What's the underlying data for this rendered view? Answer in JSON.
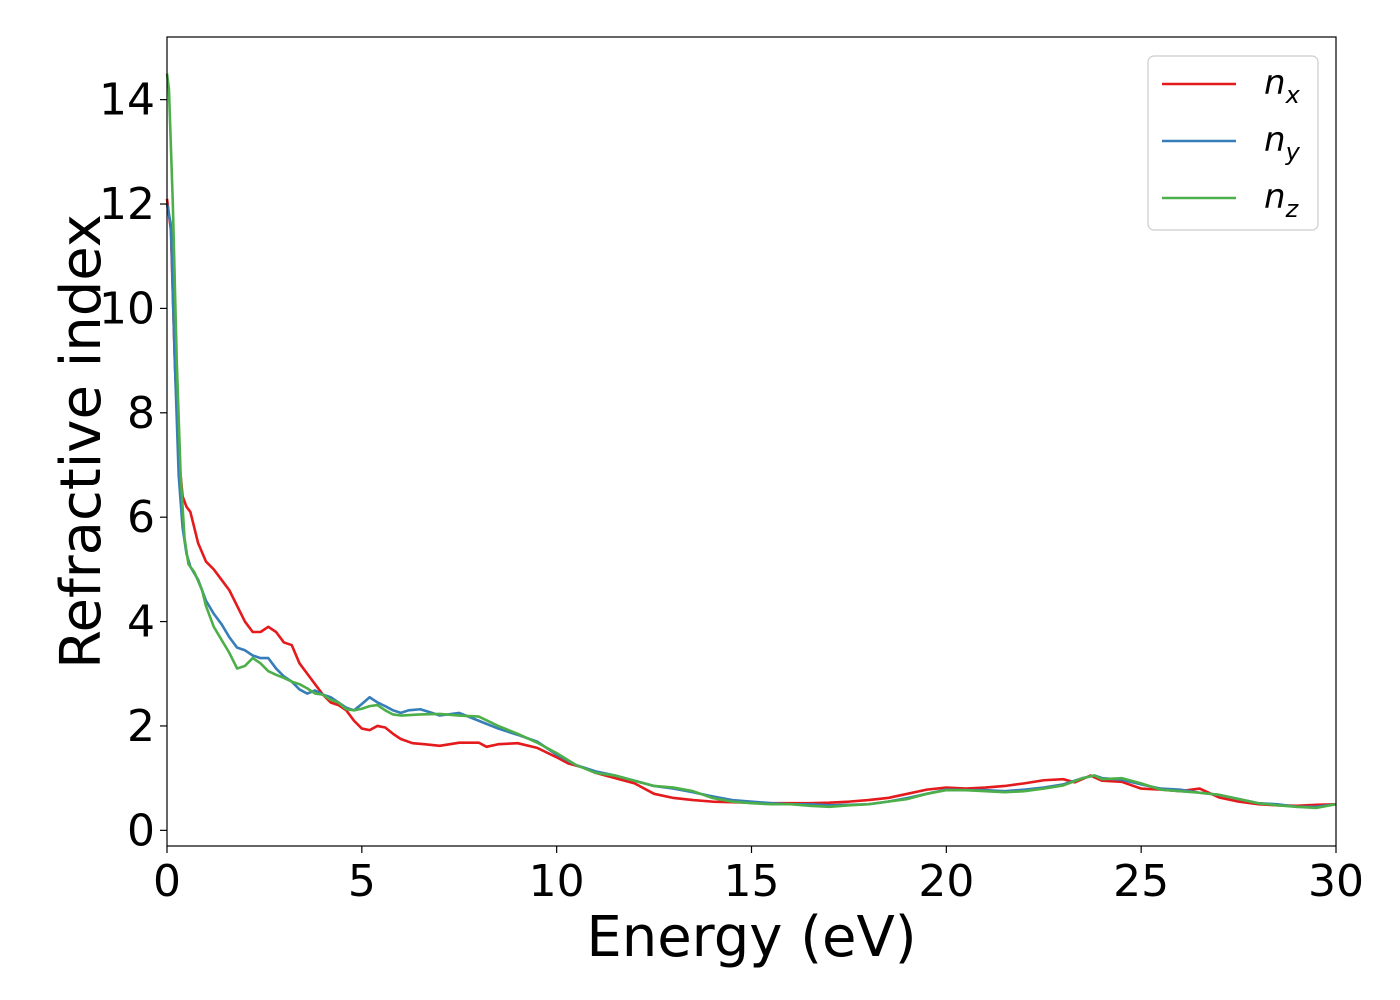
{
  "chart_data": {
    "type": "line",
    "xlabel": "Energy (eV)",
    "ylabel": "Refractive index",
    "xlim": [
      0,
      30
    ],
    "ylim": [
      -0.3,
      15.2
    ],
    "xticks": [
      0,
      5,
      10,
      15,
      20,
      25,
      30
    ],
    "yticks": [
      0,
      2,
      4,
      6,
      8,
      10,
      12,
      14
    ],
    "grid": false,
    "legend_position": "top-right",
    "series": [
      {
        "name": "n_x",
        "legend_main": "n",
        "legend_sub": "x",
        "color": "#e41a1c",
        "points": [
          [
            0,
            12.1
          ],
          [
            0.1,
            11.5
          ],
          [
            0.2,
            9.0
          ],
          [
            0.3,
            7.2
          ],
          [
            0.4,
            6.4
          ],
          [
            0.5,
            6.2
          ],
          [
            0.6,
            6.1
          ],
          [
            0.8,
            5.5
          ],
          [
            1.0,
            5.15
          ],
          [
            1.2,
            5.0
          ],
          [
            1.4,
            4.8
          ],
          [
            1.6,
            4.6
          ],
          [
            1.8,
            4.3
          ],
          [
            2.0,
            4.0
          ],
          [
            2.2,
            3.8
          ],
          [
            2.4,
            3.8
          ],
          [
            2.6,
            3.9
          ],
          [
            2.8,
            3.8
          ],
          [
            3.0,
            3.6
          ],
          [
            3.2,
            3.55
          ],
          [
            3.4,
            3.2
          ],
          [
            3.6,
            3.0
          ],
          [
            3.8,
            2.8
          ],
          [
            4.0,
            2.6
          ],
          [
            4.2,
            2.45
          ],
          [
            4.4,
            2.4
          ],
          [
            4.6,
            2.3
          ],
          [
            4.8,
            2.1
          ],
          [
            5.0,
            1.95
          ],
          [
            5.2,
            1.92
          ],
          [
            5.4,
            2.0
          ],
          [
            5.6,
            1.97
          ],
          [
            5.8,
            1.85
          ],
          [
            6.0,
            1.75
          ],
          [
            6.3,
            1.67
          ],
          [
            6.6,
            1.65
          ],
          [
            7.0,
            1.62
          ],
          [
            7.5,
            1.68
          ],
          [
            8.0,
            1.68
          ],
          [
            8.2,
            1.6
          ],
          [
            8.5,
            1.65
          ],
          [
            9.0,
            1.67
          ],
          [
            9.5,
            1.58
          ],
          [
            10.0,
            1.4
          ],
          [
            10.3,
            1.28
          ],
          [
            10.7,
            1.2
          ],
          [
            11.0,
            1.1
          ],
          [
            11.5,
            1.0
          ],
          [
            12.0,
            0.9
          ],
          [
            12.5,
            0.7
          ],
          [
            13.0,
            0.62
          ],
          [
            13.5,
            0.58
          ],
          [
            14.0,
            0.55
          ],
          [
            14.5,
            0.54
          ],
          [
            15.0,
            0.53
          ],
          [
            15.5,
            0.52
          ],
          [
            16.0,
            0.52
          ],
          [
            16.5,
            0.52
          ],
          [
            17.0,
            0.53
          ],
          [
            17.5,
            0.55
          ],
          [
            18.0,
            0.58
          ],
          [
            18.5,
            0.62
          ],
          [
            19.0,
            0.7
          ],
          [
            19.5,
            0.78
          ],
          [
            20.0,
            0.82
          ],
          [
            20.5,
            0.8
          ],
          [
            21.0,
            0.82
          ],
          [
            21.5,
            0.85
          ],
          [
            22.0,
            0.9
          ],
          [
            22.5,
            0.96
          ],
          [
            23.0,
            0.98
          ],
          [
            23.3,
            0.92
          ],
          [
            23.7,
            1.05
          ],
          [
            24.0,
            0.95
          ],
          [
            24.5,
            0.93
          ],
          [
            25.0,
            0.8
          ],
          [
            25.5,
            0.78
          ],
          [
            26.0,
            0.75
          ],
          [
            26.5,
            0.8
          ],
          [
            27.0,
            0.63
          ],
          [
            27.5,
            0.55
          ],
          [
            28.0,
            0.5
          ],
          [
            28.5,
            0.48
          ],
          [
            29.0,
            0.47
          ],
          [
            29.5,
            0.49
          ],
          [
            30.0,
            0.5
          ]
        ]
      },
      {
        "name": "n_y",
        "legend_main": "n",
        "legend_sub": "y",
        "color": "#377eb8",
        "points": [
          [
            0,
            12.0
          ],
          [
            0.1,
            11.6
          ],
          [
            0.2,
            9.0
          ],
          [
            0.3,
            6.8
          ],
          [
            0.4,
            5.8
          ],
          [
            0.5,
            5.3
          ],
          [
            0.6,
            5.05
          ],
          [
            0.8,
            4.8
          ],
          [
            1.0,
            4.4
          ],
          [
            1.2,
            4.15
          ],
          [
            1.4,
            3.95
          ],
          [
            1.6,
            3.7
          ],
          [
            1.8,
            3.5
          ],
          [
            2.0,
            3.45
          ],
          [
            2.2,
            3.35
          ],
          [
            2.4,
            3.3
          ],
          [
            2.6,
            3.3
          ],
          [
            2.8,
            3.1
          ],
          [
            3.0,
            2.95
          ],
          [
            3.2,
            2.85
          ],
          [
            3.4,
            2.7
          ],
          [
            3.6,
            2.62
          ],
          [
            3.8,
            2.68
          ],
          [
            4.0,
            2.6
          ],
          [
            4.2,
            2.55
          ],
          [
            4.4,
            2.45
          ],
          [
            4.6,
            2.35
          ],
          [
            4.8,
            2.3
          ],
          [
            5.0,
            2.42
          ],
          [
            5.2,
            2.55
          ],
          [
            5.4,
            2.45
          ],
          [
            5.6,
            2.38
          ],
          [
            5.8,
            2.3
          ],
          [
            6.0,
            2.25
          ],
          [
            6.2,
            2.3
          ],
          [
            6.5,
            2.32
          ],
          [
            6.8,
            2.25
          ],
          [
            7.0,
            2.2
          ],
          [
            7.5,
            2.25
          ],
          [
            8.0,
            2.1
          ],
          [
            8.5,
            1.95
          ],
          [
            9.0,
            1.83
          ],
          [
            9.5,
            1.7
          ],
          [
            10.0,
            1.45
          ],
          [
            10.5,
            1.25
          ],
          [
            11.0,
            1.13
          ],
          [
            11.5,
            1.05
          ],
          [
            12.0,
            0.95
          ],
          [
            12.5,
            0.85
          ],
          [
            13.0,
            0.8
          ],
          [
            13.5,
            0.73
          ],
          [
            14.0,
            0.65
          ],
          [
            14.5,
            0.58
          ],
          [
            15.0,
            0.55
          ],
          [
            15.5,
            0.52
          ],
          [
            16.0,
            0.5
          ],
          [
            16.5,
            0.5
          ],
          [
            17.0,
            0.48
          ],
          [
            17.5,
            0.49
          ],
          [
            18.0,
            0.5
          ],
          [
            18.5,
            0.55
          ],
          [
            19.0,
            0.62
          ],
          [
            19.5,
            0.7
          ],
          [
            20.0,
            0.78
          ],
          [
            20.5,
            0.77
          ],
          [
            21.0,
            0.77
          ],
          [
            21.5,
            0.75
          ],
          [
            22.0,
            0.78
          ],
          [
            22.5,
            0.82
          ],
          [
            23.0,
            0.88
          ],
          [
            23.5,
            1.0
          ],
          [
            23.8,
            1.05
          ],
          [
            24.0,
            1.0
          ],
          [
            24.5,
            0.97
          ],
          [
            25.0,
            0.88
          ],
          [
            25.5,
            0.8
          ],
          [
            26.0,
            0.78
          ],
          [
            26.5,
            0.72
          ],
          [
            27.0,
            0.68
          ],
          [
            27.5,
            0.6
          ],
          [
            28.0,
            0.52
          ],
          [
            28.5,
            0.5
          ],
          [
            29.0,
            0.45
          ],
          [
            29.5,
            0.45
          ],
          [
            30.0,
            0.5
          ]
        ]
      },
      {
        "name": "n_z",
        "legend_main": "n",
        "legend_sub": "z",
        "color": "#4daf4a",
        "points": [
          [
            0,
            14.5
          ],
          [
            0.05,
            14.2
          ],
          [
            0.15,
            12.0
          ],
          [
            0.25,
            9.0
          ],
          [
            0.35,
            6.8
          ],
          [
            0.45,
            5.6
          ],
          [
            0.55,
            5.1
          ],
          [
            0.7,
            4.95
          ],
          [
            0.9,
            4.6
          ],
          [
            1.0,
            4.3
          ],
          [
            1.2,
            3.9
          ],
          [
            1.4,
            3.65
          ],
          [
            1.6,
            3.4
          ],
          [
            1.8,
            3.1
          ],
          [
            2.0,
            3.15
          ],
          [
            2.2,
            3.3
          ],
          [
            2.4,
            3.2
          ],
          [
            2.6,
            3.05
          ],
          [
            2.8,
            2.98
          ],
          [
            3.0,
            2.92
          ],
          [
            3.2,
            2.85
          ],
          [
            3.4,
            2.8
          ],
          [
            3.6,
            2.72
          ],
          [
            3.8,
            2.62
          ],
          [
            4.0,
            2.6
          ],
          [
            4.2,
            2.5
          ],
          [
            4.4,
            2.45
          ],
          [
            4.6,
            2.32
          ],
          [
            4.8,
            2.3
          ],
          [
            5.0,
            2.33
          ],
          [
            5.2,
            2.38
          ],
          [
            5.4,
            2.4
          ],
          [
            5.6,
            2.3
          ],
          [
            5.8,
            2.22
          ],
          [
            6.0,
            2.2
          ],
          [
            6.5,
            2.22
          ],
          [
            7.0,
            2.23
          ],
          [
            7.5,
            2.2
          ],
          [
            8.0,
            2.18
          ],
          [
            8.5,
            2.0
          ],
          [
            9.0,
            1.85
          ],
          [
            9.5,
            1.68
          ],
          [
            10.0,
            1.48
          ],
          [
            10.5,
            1.25
          ],
          [
            11.0,
            1.1
          ],
          [
            11.5,
            1.05
          ],
          [
            12.0,
            0.95
          ],
          [
            12.5,
            0.85
          ],
          [
            13.0,
            0.82
          ],
          [
            13.5,
            0.75
          ],
          [
            14.0,
            0.62
          ],
          [
            14.5,
            0.55
          ],
          [
            15.0,
            0.52
          ],
          [
            15.5,
            0.5
          ],
          [
            16.0,
            0.5
          ],
          [
            16.5,
            0.47
          ],
          [
            17.0,
            0.45
          ],
          [
            17.5,
            0.48
          ],
          [
            18.0,
            0.5
          ],
          [
            18.5,
            0.55
          ],
          [
            19.0,
            0.6
          ],
          [
            19.5,
            0.7
          ],
          [
            20.0,
            0.77
          ],
          [
            20.5,
            0.77
          ],
          [
            21.0,
            0.75
          ],
          [
            21.5,
            0.73
          ],
          [
            22.0,
            0.75
          ],
          [
            22.5,
            0.8
          ],
          [
            23.0,
            0.86
          ],
          [
            23.5,
            1.0
          ],
          [
            23.8,
            1.05
          ],
          [
            24.0,
            0.98
          ],
          [
            24.5,
            1.0
          ],
          [
            25.0,
            0.9
          ],
          [
            25.5,
            0.78
          ],
          [
            26.0,
            0.75
          ],
          [
            26.5,
            0.72
          ],
          [
            27.0,
            0.68
          ],
          [
            27.5,
            0.6
          ],
          [
            28.0,
            0.52
          ],
          [
            28.5,
            0.48
          ],
          [
            29.0,
            0.45
          ],
          [
            29.5,
            0.43
          ],
          [
            30.0,
            0.5
          ]
        ]
      }
    ]
  }
}
